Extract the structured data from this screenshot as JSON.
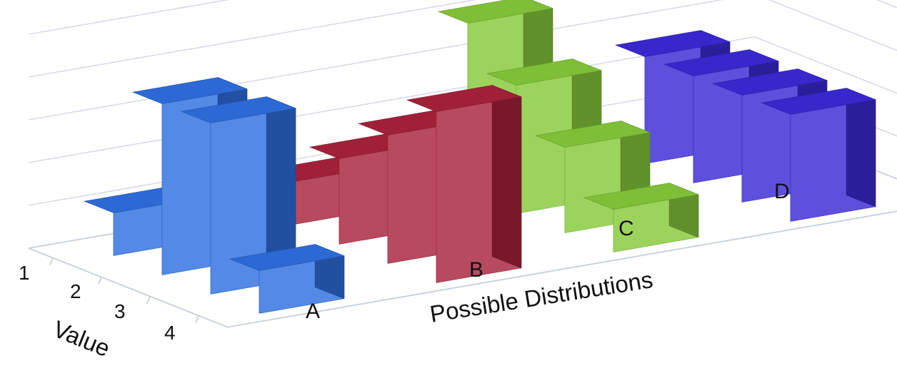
{
  "chart_data": {
    "type": "bar",
    "projection": "3d",
    "xlabel": "Possible Distributions",
    "ylabel": "Value",
    "categories": [
      "A",
      "B",
      "C",
      "D"
    ],
    "value_ticks": [
      "1",
      "2",
      "3",
      "4"
    ],
    "zlim": [
      0,
      0.5
    ],
    "grid": true,
    "series": [
      {
        "category": "A",
        "color": "#2f6fe0",
        "values": [
          0.1,
          0.4,
          0.4,
          0.1
        ]
      },
      {
        "category": "B",
        "color": "#a8223c",
        "values": [
          0.1,
          0.2,
          0.3,
          0.4
        ]
      },
      {
        "category": "C",
        "color": "#86c93a",
        "values": [
          0.4,
          0.3,
          0.2,
          0.1
        ]
      },
      {
        "category": "D",
        "color": "#3b2ad6",
        "values": [
          0.25,
          0.25,
          0.25,
          0.25
        ]
      }
    ]
  }
}
